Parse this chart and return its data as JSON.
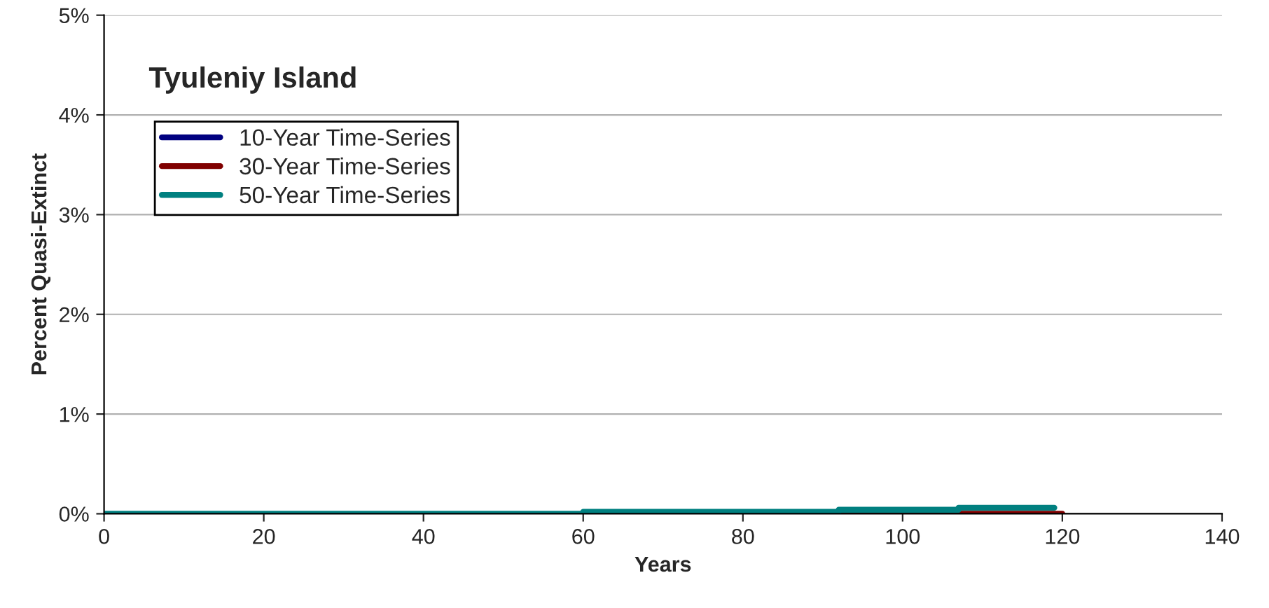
{
  "chart_data": {
    "type": "step",
    "title": "Tyuleniy Island",
    "xlabel": "Years",
    "ylabel": "Percent Quasi-Extinct",
    "series": [
      {
        "name": "10-Year Time-Series",
        "color": "#000080"
      },
      {
        "name": "30-Year Time-Series",
        "color": "#800000",
        "x": [
          92,
          120
        ],
        "values": [
          0,
          0
        ]
      },
      {
        "name": "50-Year Time-Series",
        "color": "#008080",
        "x": [
          0,
          60,
          92,
          107,
          119
        ],
        "values": [
          0,
          0.02,
          0.04,
          0.06,
          0.06
        ]
      }
    ],
    "xlim": [
      0,
      140
    ],
    "xticks": [
      0,
      20,
      40,
      60,
      80,
      100,
      120,
      140
    ],
    "ylim": [
      0,
      5
    ],
    "yticks": [
      {
        "value": 0,
        "label": "0%"
      },
      {
        "value": 1,
        "label": "1%"
      },
      {
        "value": 2,
        "label": "2%"
      },
      {
        "value": 3,
        "label": "3%"
      },
      {
        "value": 4,
        "label": "4%"
      },
      {
        "value": 5,
        "label": "5%"
      }
    ],
    "grid": "y",
    "legend": "top left"
  }
}
